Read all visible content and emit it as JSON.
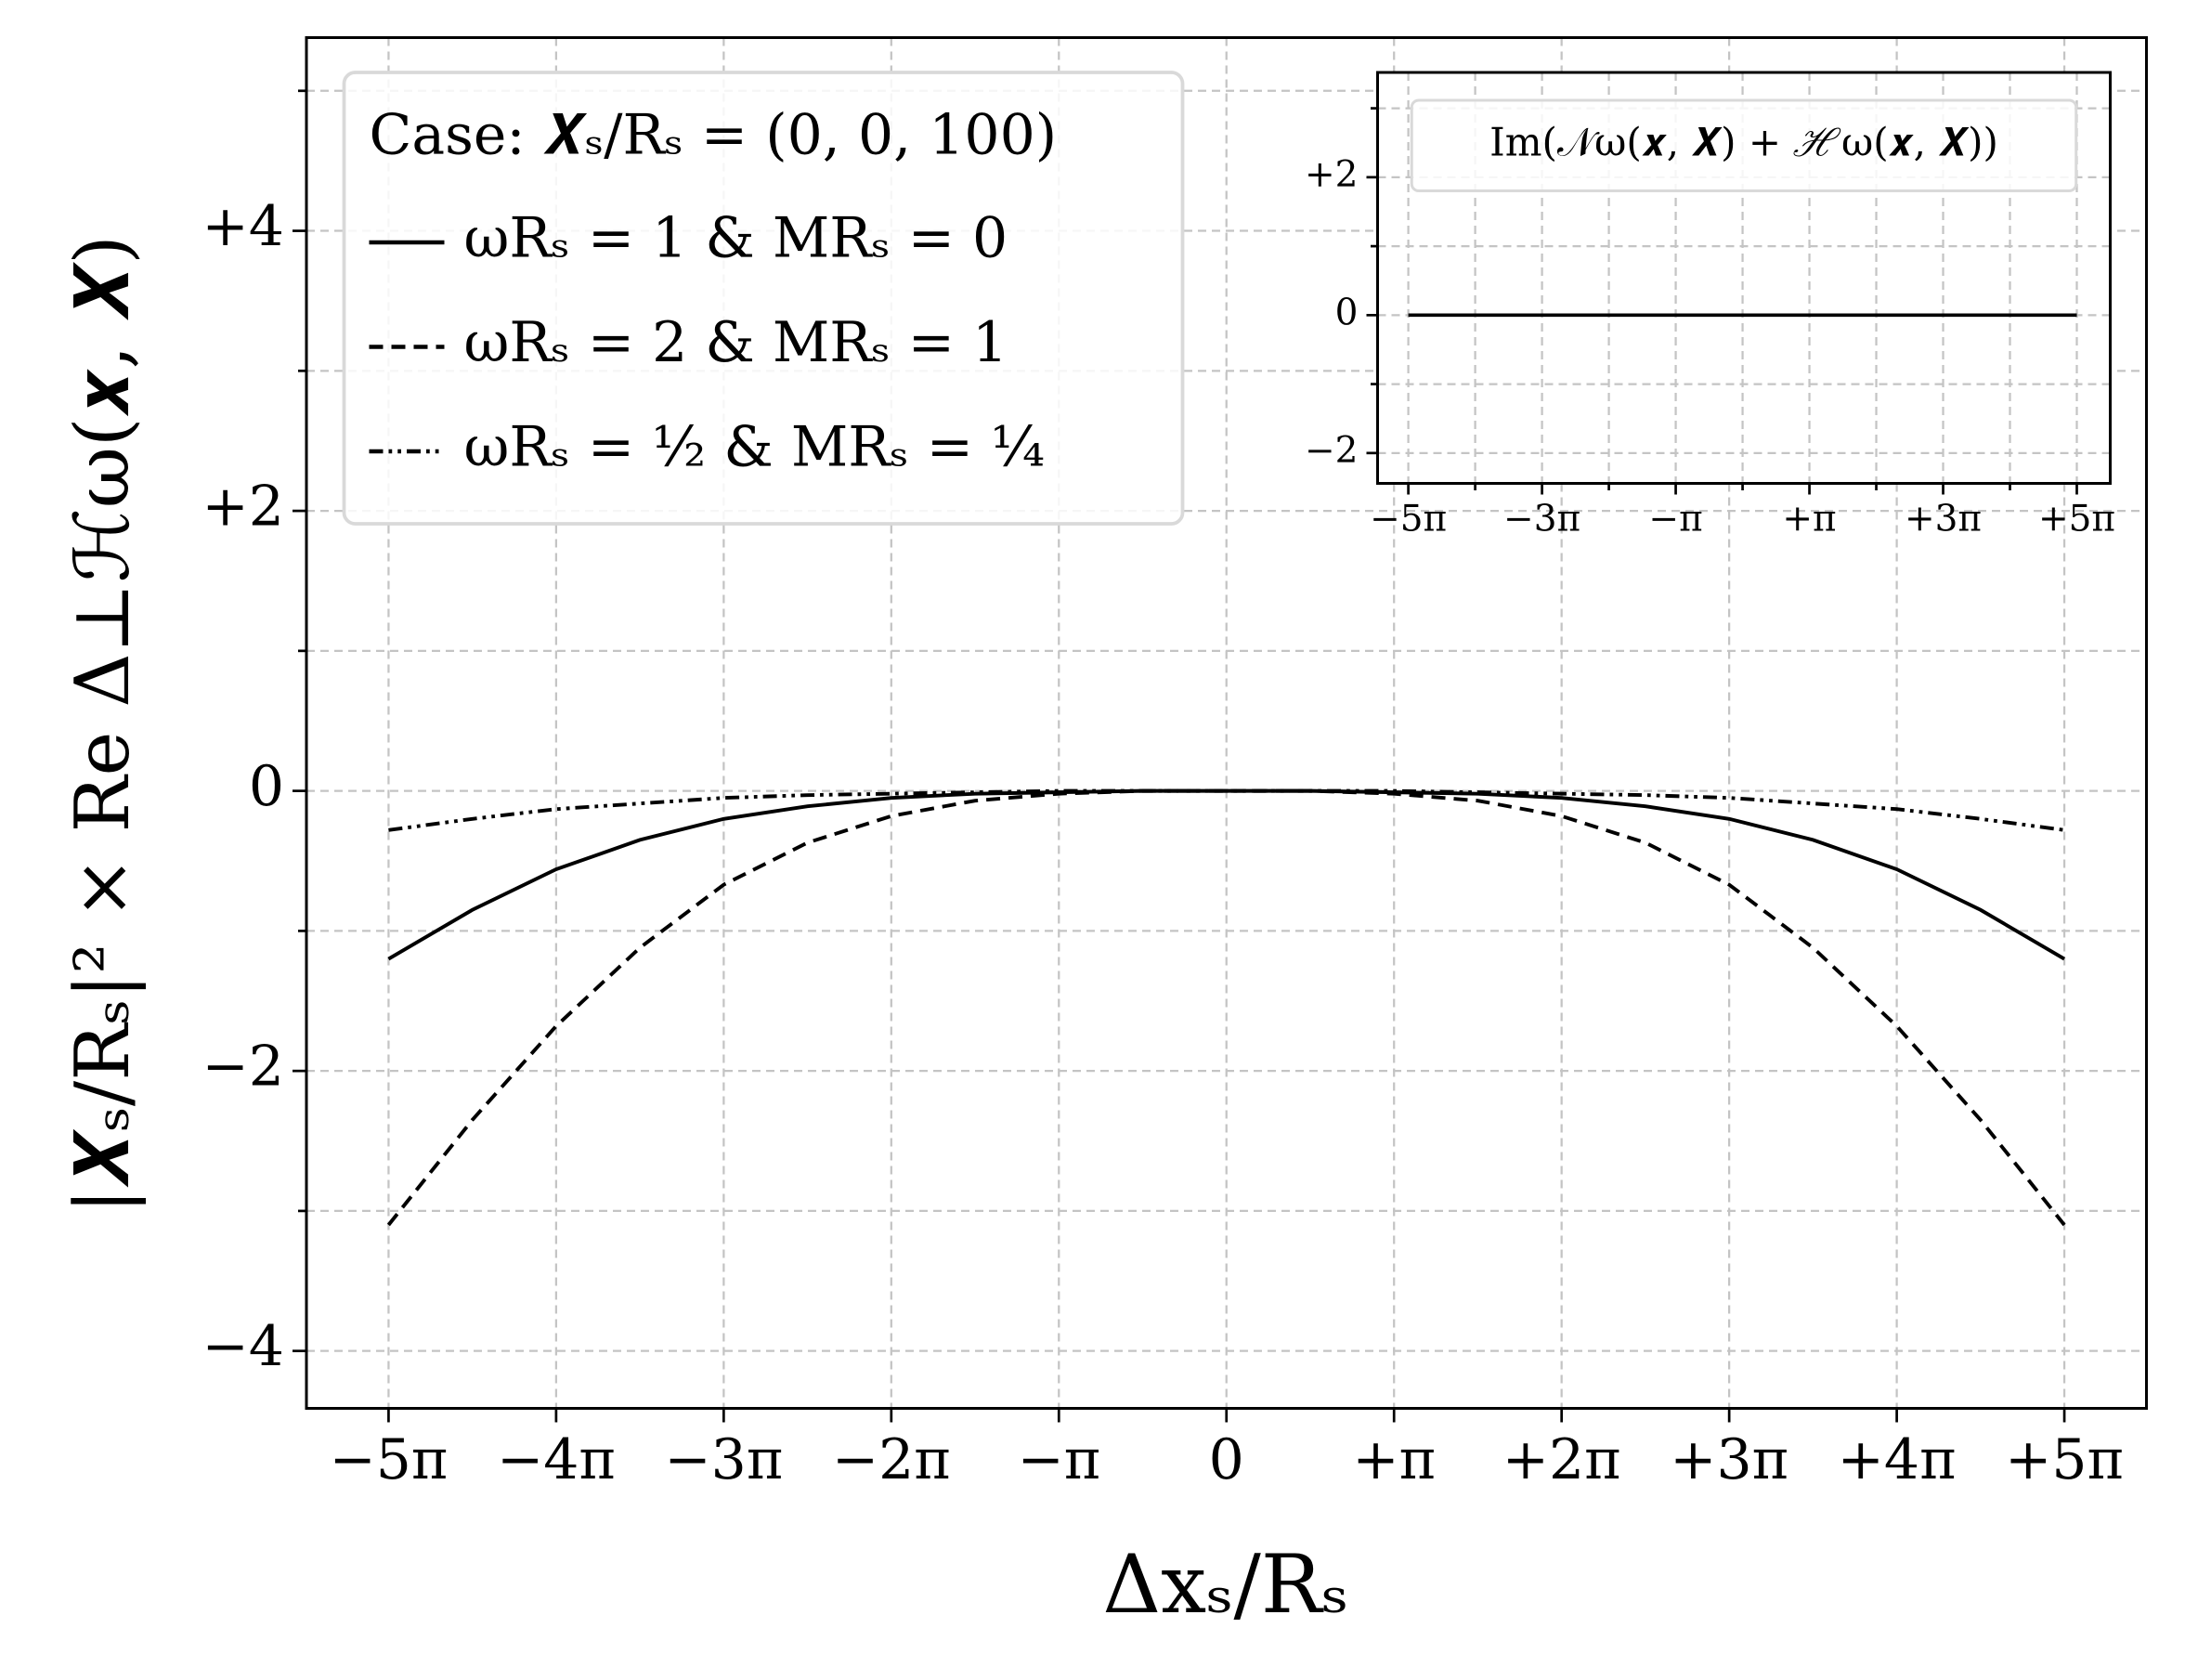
{
  "chart_data": [
    {
      "type": "line",
      "xlabel": "Δxₛ/Rₛ",
      "ylabel": "|𝑿ₛ/Rₛ|² × Re Δ⊥ℋω(𝒙, 𝑿)",
      "legend_title": "Case: 𝑿ₛ/Rₛ = (0, 0, 100)",
      "legend": "upper left",
      "grid": true,
      "x": [
        -5,
        -4.5,
        -4,
        -3.5,
        -3,
        -2.5,
        -2,
        -1.5,
        -1,
        -0.5,
        0,
        0.5,
        1,
        1.5,
        2,
        2.5,
        3,
        3.5,
        4,
        4.5,
        5
      ],
      "series": [
        {
          "name": "ωRₛ = 1 & MRₛ = 0",
          "color": "#000000",
          "linestyle": "solid",
          "values": [
            -1.2,
            -0.85,
            -0.56,
            -0.35,
            -0.2,
            -0.11,
            -0.05,
            -0.02,
            -0.01,
            0,
            0,
            0,
            -0.01,
            -0.02,
            -0.05,
            -0.11,
            -0.2,
            -0.35,
            -0.56,
            -0.85,
            -1.2
          ]
        },
        {
          "name": "ωRₛ = 2 & MRₛ = 1",
          "color": "#000000",
          "linestyle": "dashed",
          "values": [
            -3.1,
            -2.35,
            -1.68,
            -1.12,
            -0.67,
            -0.37,
            -0.18,
            -0.07,
            -0.02,
            0,
            0,
            0,
            -0.02,
            -0.07,
            -0.18,
            -0.37,
            -0.67,
            -1.12,
            -1.68,
            -2.35,
            -3.1
          ]
        },
        {
          "name": "ωRₛ = ½ & MRₛ = ¼",
          "color": "#000000",
          "linestyle": "dashdotdot",
          "values": [
            -0.28,
            -0.2,
            -0.13,
            -0.09,
            -0.05,
            -0.03,
            -0.02,
            -0.01,
            0,
            0,
            0,
            0,
            0,
            -0.01,
            -0.02,
            -0.03,
            -0.05,
            -0.09,
            -0.13,
            -0.2,
            -0.28
          ]
        }
      ],
      "xlim": [
        -5.49,
        5.49
      ],
      "ylim": [
        -4.41,
        5.38
      ],
      "xticks": [
        {
          "value": -5,
          "label": "−5π"
        },
        {
          "value": -4,
          "label": "−4π"
        },
        {
          "value": -3,
          "label": "−3π"
        },
        {
          "value": -2,
          "label": "−2π"
        },
        {
          "value": -1,
          "label": "−π"
        },
        0,
        {
          "value": 1,
          "label": "+π"
        },
        {
          "value": 2,
          "label": "+2π"
        },
        {
          "value": 3,
          "label": "+3π"
        },
        {
          "value": 4,
          "label": "+4π"
        },
        {
          "value": 5,
          "label": "+5π"
        }
      ],
      "yticks": [
        {
          "value": -4,
          "label": "−4"
        },
        {
          "value": -2,
          "label": "−2"
        },
        0,
        {
          "value": 2,
          "label": "+2"
        },
        {
          "value": 4,
          "label": "+4"
        }
      ],
      "yminor": [
        -3,
        -1,
        1,
        3,
        5
      ]
    },
    {
      "type": "line",
      "title": "Im(𝒩ω(𝒙, 𝑿) + ℋω(𝒙, 𝑿))",
      "grid": true,
      "x": [
        -5,
        5
      ],
      "series": [
        {
          "color": "#000000",
          "linestyle": "solid",
          "values": [
            0,
            0
          ]
        }
      ],
      "xlim": [
        -5.46,
        5.5
      ],
      "ylim": [
        -2.44,
        3.52
      ],
      "xticks": [
        {
          "value": -5,
          "label": "−5π"
        },
        {
          "value": -3,
          "label": "−3π"
        },
        {
          "value": -1,
          "label": "−π"
        },
        {
          "value": 1,
          "label": "+π"
        },
        {
          "value": 3,
          "label": "+3π"
        },
        {
          "value": 5,
          "label": "+5π"
        }
      ],
      "xminor": [
        -4,
        -2,
        0,
        2,
        4
      ],
      "yticks": [
        {
          "value": -2,
          "label": "−2"
        },
        0,
        {
          "value": 2,
          "label": "+2"
        }
      ],
      "yminor": [
        -1,
        1,
        3
      ]
    }
  ]
}
